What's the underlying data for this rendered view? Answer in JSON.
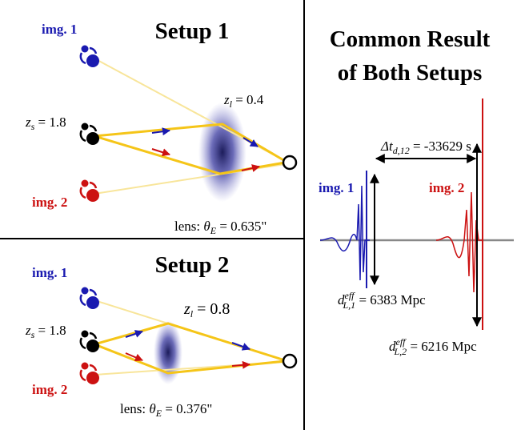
{
  "setup_1": {
    "title": "Setup 1",
    "image_1": "img. 1",
    "image_2": "img. 2",
    "source_redshift": {
      "symbol": "z",
      "subscript": "s",
      "value": " = 1.8"
    },
    "lens_redshift": {
      "symbol": "z",
      "subscript": "l",
      "value": " = 0.4"
    },
    "einstein_radius": {
      "prefix": "lens: ",
      "symbol": "θ",
      "subscript": "E",
      "value": " = 0.635\""
    }
  },
  "setup_2": {
    "title": "Setup 2",
    "image_1": "img. 1",
    "image_2": "img. 2",
    "source_redshift": {
      "symbol": "z",
      "subscript": "s",
      "value": " = 1.8"
    },
    "lens_redshift": {
      "symbol": "z",
      "subscript": "l",
      "value": " = 0.8"
    },
    "einstein_radius": {
      "prefix": "lens: ",
      "symbol": "θ",
      "subscript": "E",
      "value": " = 0.376\""
    }
  },
  "result": {
    "title_lines": [
      "Common Result",
      "of Both Setups"
    ],
    "image_1": "img. 1",
    "image_2": "img. 2",
    "time_delay": {
      "symbol": "Δt",
      "subscript": "d,12",
      "value": " = -33629 s"
    },
    "distance_1": {
      "symbol": "d",
      "superscript": "eff",
      "subscript": "L,1",
      "value": " = 6383 Mpc"
    },
    "distance_2": {
      "symbol": "d",
      "superscript": "eff",
      "subscript": "L,2",
      "value": " = 6216 Mpc"
    }
  }
}
